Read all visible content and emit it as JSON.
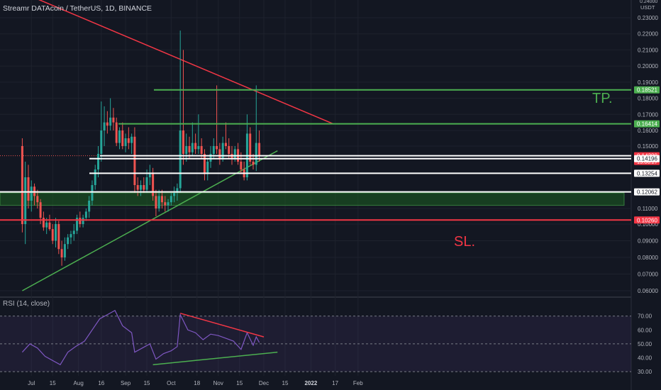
{
  "header": {
    "symbol": "Streamr DATAcoin / TetherUS, 1D, BINANCE"
  },
  "rsi_header": {
    "label": "RSI (14, close)"
  },
  "annotations": {
    "tp": "TP.",
    "sl": "SL."
  },
  "colors": {
    "background": "#131722",
    "up": "#26a69a",
    "down": "#ef5350",
    "green_line": "#4caf50",
    "red_line": "#f23645",
    "white_line": "#ffffff",
    "rsi_line": "#7e57c2",
    "zone_fill": "#1b5e20"
  },
  "chart_data": [
    {
      "type": "candlestick",
      "price_axis": {
        "unit_label": "USDT",
        "top_label": "0.24000",
        "ticks": [
          "0.23000",
          "0.22000",
          "0.21000",
          "0.20000",
          "0.19000",
          "0.18000",
          "0.17000",
          "0.16000",
          "0.15000",
          "0.11000",
          "0.10000",
          "0.09000",
          "0.08000",
          "0.07000",
          "0.06000"
        ],
        "ylim": [
          0.06,
          0.24
        ]
      },
      "time_axis": {
        "ticks": [
          "Jul",
          "15",
          "Aug",
          "16",
          "Sep",
          "15",
          "Oct",
          "18",
          "Nov",
          "15",
          "Dec",
          "15",
          "2022",
          "17",
          "Feb"
        ]
      },
      "levels": [
        {
          "price": "0.18521",
          "color": "green_line",
          "role": "TP"
        },
        {
          "price": "0.16414",
          "color": "green_line"
        },
        {
          "price": "0.14380",
          "color": "white_line",
          "countdown": "13:06:27",
          "role": "current"
        },
        {
          "price": "0.14196",
          "color": "white_line"
        },
        {
          "price": "0.13254",
          "color": "white_line"
        },
        {
          "price": "0.12062",
          "color": "white_line"
        },
        {
          "price": "0.10260",
          "color": "red_line",
          "role": "SL"
        }
      ],
      "zone": {
        "from": 0.112,
        "to": 0.12,
        "color": "zone_fill"
      },
      "trendlines": [
        {
          "color": "red_line",
          "from": [
            "Jul 4 2021",
            0.242
          ],
          "to": [
            "Jan 16 2022",
            0.164
          ]
        },
        {
          "color": "green_line",
          "from": [
            "Jun 25 2021",
            0.06
          ],
          "to": [
            "Dec 10 2021",
            0.147
          ]
        }
      ],
      "candles": [
        {
          "date": "2021-06-25",
          "o": 0.15,
          "h": 0.155,
          "l": 0.095,
          "c": 0.1
        },
        {
          "date": "2021-06-27",
          "o": 0.1,
          "h": 0.14,
          "l": 0.088,
          "c": 0.13
        },
        {
          "date": "2021-06-29",
          "o": 0.13,
          "h": 0.138,
          "l": 0.11,
          "c": 0.115
        },
        {
          "date": "2021-07-01",
          "o": 0.115,
          "h": 0.128,
          "l": 0.108,
          "c": 0.124
        },
        {
          "date": "2021-07-03",
          "o": 0.124,
          "h": 0.126,
          "l": 0.112,
          "c": 0.118
        },
        {
          "date": "2021-07-05",
          "o": 0.118,
          "h": 0.122,
          "l": 0.11,
          "c": 0.114
        },
        {
          "date": "2021-07-07",
          "o": 0.114,
          "h": 0.116,
          "l": 0.1,
          "c": 0.104
        },
        {
          "date": "2021-07-09",
          "o": 0.104,
          "h": 0.108,
          "l": 0.096,
          "c": 0.098
        },
        {
          "date": "2021-07-11",
          "o": 0.098,
          "h": 0.104,
          "l": 0.094,
          "c": 0.101
        },
        {
          "date": "2021-07-13",
          "o": 0.101,
          "h": 0.106,
          "l": 0.096,
          "c": 0.097
        },
        {
          "date": "2021-07-15",
          "o": 0.097,
          "h": 0.1,
          "l": 0.088,
          "c": 0.09
        },
        {
          "date": "2021-07-17",
          "o": 0.09,
          "h": 0.104,
          "l": 0.086,
          "c": 0.1
        },
        {
          "date": "2021-07-19",
          "o": 0.1,
          "h": 0.102,
          "l": 0.082,
          "c": 0.085
        },
        {
          "date": "2021-07-21",
          "o": 0.085,
          "h": 0.09,
          "l": 0.075,
          "c": 0.08
        },
        {
          "date": "2021-07-23",
          "o": 0.08,
          "h": 0.092,
          "l": 0.078,
          "c": 0.088
        },
        {
          "date": "2021-07-25",
          "o": 0.088,
          "h": 0.094,
          "l": 0.085,
          "c": 0.092
        },
        {
          "date": "2021-07-27",
          "o": 0.092,
          "h": 0.096,
          "l": 0.088,
          "c": 0.094
        },
        {
          "date": "2021-07-29",
          "o": 0.094,
          "h": 0.1,
          "l": 0.09,
          "c": 0.096
        },
        {
          "date": "2021-07-31",
          "o": 0.096,
          "h": 0.106,
          "l": 0.094,
          "c": 0.104
        },
        {
          "date": "2021-08-02",
          "o": 0.104,
          "h": 0.108,
          "l": 0.098,
          "c": 0.1
        },
        {
          "date": "2021-08-04",
          "o": 0.1,
          "h": 0.106,
          "l": 0.098,
          "c": 0.104
        },
        {
          "date": "2021-08-06",
          "o": 0.104,
          "h": 0.11,
          "l": 0.102,
          "c": 0.108
        },
        {
          "date": "2021-08-08",
          "o": 0.108,
          "h": 0.118,
          "l": 0.104,
          "c": 0.115
        },
        {
          "date": "2021-08-10",
          "o": 0.115,
          "h": 0.128,
          "l": 0.112,
          "c": 0.125
        },
        {
          "date": "2021-08-12",
          "o": 0.125,
          "h": 0.138,
          "l": 0.122,
          "c": 0.135
        },
        {
          "date": "2021-08-14",
          "o": 0.135,
          "h": 0.15,
          "l": 0.13,
          "c": 0.145
        },
        {
          "date": "2021-08-16",
          "o": 0.145,
          "h": 0.178,
          "l": 0.14,
          "c": 0.16
        },
        {
          "date": "2021-08-18",
          "o": 0.16,
          "h": 0.175,
          "l": 0.15,
          "c": 0.165
        },
        {
          "date": "2021-08-20",
          "o": 0.165,
          "h": 0.172,
          "l": 0.158,
          "c": 0.163
        },
        {
          "date": "2021-08-22",
          "o": 0.163,
          "h": 0.18,
          "l": 0.16,
          "c": 0.168
        },
        {
          "date": "2021-08-24",
          "o": 0.168,
          "h": 0.174,
          "l": 0.16,
          "c": 0.165
        },
        {
          "date": "2021-08-26",
          "o": 0.165,
          "h": 0.168,
          "l": 0.15,
          "c": 0.152
        },
        {
          "date": "2021-08-28",
          "o": 0.152,
          "h": 0.162,
          "l": 0.148,
          "c": 0.16
        },
        {
          "date": "2021-08-30",
          "o": 0.16,
          "h": 0.165,
          "l": 0.148,
          "c": 0.15
        },
        {
          "date": "2021-09-01",
          "o": 0.15,
          "h": 0.158,
          "l": 0.146,
          "c": 0.155
        },
        {
          "date": "2021-09-03",
          "o": 0.155,
          "h": 0.162,
          "l": 0.148,
          "c": 0.152
        },
        {
          "date": "2021-09-05",
          "o": 0.152,
          "h": 0.158,
          "l": 0.145,
          "c": 0.156
        },
        {
          "date": "2021-09-07",
          "o": 0.156,
          "h": 0.162,
          "l": 0.12,
          "c": 0.125
        },
        {
          "date": "2021-09-09",
          "o": 0.125,
          "h": 0.13,
          "l": 0.118,
          "c": 0.122
        },
        {
          "date": "2021-09-11",
          "o": 0.122,
          "h": 0.128,
          "l": 0.118,
          "c": 0.125
        },
        {
          "date": "2021-09-13",
          "o": 0.125,
          "h": 0.13,
          "l": 0.12,
          "c": 0.122
        },
        {
          "date": "2021-09-15",
          "o": 0.122,
          "h": 0.135,
          "l": 0.12,
          "c": 0.13
        },
        {
          "date": "2021-09-17",
          "o": 0.13,
          "h": 0.138,
          "l": 0.125,
          "c": 0.133
        },
        {
          "date": "2021-09-19",
          "o": 0.133,
          "h": 0.136,
          "l": 0.115,
          "c": 0.118
        },
        {
          "date": "2021-09-21",
          "o": 0.118,
          "h": 0.122,
          "l": 0.105,
          "c": 0.11
        },
        {
          "date": "2021-09-23",
          "o": 0.11,
          "h": 0.122,
          "l": 0.108,
          "c": 0.118
        },
        {
          "date": "2021-09-25",
          "o": 0.118,
          "h": 0.122,
          "l": 0.11,
          "c": 0.114
        },
        {
          "date": "2021-09-27",
          "o": 0.114,
          "h": 0.118,
          "l": 0.108,
          "c": 0.112
        },
        {
          "date": "2021-09-29",
          "o": 0.112,
          "h": 0.116,
          "l": 0.108,
          "c": 0.114
        },
        {
          "date": "2021-10-01",
          "o": 0.114,
          "h": 0.12,
          "l": 0.112,
          "c": 0.118
        },
        {
          "date": "2021-10-03",
          "o": 0.118,
          "h": 0.124,
          "l": 0.114,
          "c": 0.12
        },
        {
          "date": "2021-10-05",
          "o": 0.12,
          "h": 0.126,
          "l": 0.115,
          "c": 0.123
        },
        {
          "date": "2021-10-07",
          "o": 0.123,
          "h": 0.222,
          "l": 0.12,
          "c": 0.16
        },
        {
          "date": "2021-10-09",
          "o": 0.16,
          "h": 0.21,
          "l": 0.138,
          "c": 0.145
        },
        {
          "date": "2021-10-11",
          "o": 0.145,
          "h": 0.158,
          "l": 0.14,
          "c": 0.15
        },
        {
          "date": "2021-10-13",
          "o": 0.15,
          "h": 0.156,
          "l": 0.142,
          "c": 0.146
        },
        {
          "date": "2021-10-15",
          "o": 0.146,
          "h": 0.165,
          "l": 0.144,
          "c": 0.152
        },
        {
          "date": "2021-10-17",
          "o": 0.152,
          "h": 0.158,
          "l": 0.145,
          "c": 0.148
        },
        {
          "date": "2021-10-19",
          "o": 0.148,
          "h": 0.17,
          "l": 0.145,
          "c": 0.15
        },
        {
          "date": "2021-10-21",
          "o": 0.15,
          "h": 0.155,
          "l": 0.142,
          "c": 0.145
        },
        {
          "date": "2021-10-23",
          "o": 0.145,
          "h": 0.148,
          "l": 0.128,
          "c": 0.132
        },
        {
          "date": "2021-10-25",
          "o": 0.132,
          "h": 0.142,
          "l": 0.128,
          "c": 0.14
        },
        {
          "date": "2021-10-27",
          "o": 0.14,
          "h": 0.15,
          "l": 0.136,
          "c": 0.145
        },
        {
          "date": "2021-10-29",
          "o": 0.145,
          "h": 0.155,
          "l": 0.142,
          "c": 0.15
        },
        {
          "date": "2021-10-31",
          "o": 0.15,
          "h": 0.188,
          "l": 0.145,
          "c": 0.148
        },
        {
          "date": "2021-11-02",
          "o": 0.148,
          "h": 0.152,
          "l": 0.138,
          "c": 0.142
        },
        {
          "date": "2021-11-04",
          "o": 0.142,
          "h": 0.156,
          "l": 0.14,
          "c": 0.152
        },
        {
          "date": "2021-11-06",
          "o": 0.152,
          "h": 0.165,
          "l": 0.148,
          "c": 0.15
        },
        {
          "date": "2021-11-08",
          "o": 0.15,
          "h": 0.155,
          "l": 0.142,
          "c": 0.145
        },
        {
          "date": "2021-11-10",
          "o": 0.145,
          "h": 0.15,
          "l": 0.138,
          "c": 0.142
        },
        {
          "date": "2021-11-12",
          "o": 0.142,
          "h": 0.15,
          "l": 0.14,
          "c": 0.148
        },
        {
          "date": "2021-11-14",
          "o": 0.148,
          "h": 0.152,
          "l": 0.138,
          "c": 0.14
        },
        {
          "date": "2021-11-16",
          "o": 0.14,
          "h": 0.146,
          "l": 0.132,
          "c": 0.135
        },
        {
          "date": "2021-11-18",
          "o": 0.135,
          "h": 0.14,
          "l": 0.128,
          "c": 0.13
        },
        {
          "date": "2021-11-20",
          "o": 0.13,
          "h": 0.17,
          "l": 0.128,
          "c": 0.158
        },
        {
          "date": "2021-11-22",
          "o": 0.158,
          "h": 0.162,
          "l": 0.138,
          "c": 0.14
        },
        {
          "date": "2021-11-24",
          "o": 0.14,
          "h": 0.145,
          "l": 0.135,
          "c": 0.138
        },
        {
          "date": "2021-11-26",
          "o": 0.138,
          "h": 0.188,
          "l": 0.134,
          "c": 0.152
        },
        {
          "date": "2021-11-28",
          "o": 0.152,
          "h": 0.16,
          "l": 0.14,
          "c": 0.144
        }
      ]
    },
    {
      "type": "line",
      "name": "RSI (14, close)",
      "y_axis": {
        "ticks": [
          "70.00",
          "60.00",
          "50.00",
          "40.00",
          "30.00"
        ],
        "ylim": [
          27,
          77
        ]
      },
      "bands": [
        70,
        50,
        30
      ],
      "trendlines": [
        {
          "color": "red_line",
          "from": [
            "Oct 7 2021",
            72
          ],
          "to": [
            "Dec 1 2021",
            55
          ]
        },
        {
          "color": "green_line",
          "from": [
            "Sep 19 2021",
            35
          ],
          "to": [
            "Dec 10 2021",
            44
          ]
        }
      ],
      "points": [
        {
          "date": "2021-06-25",
          "v": 44
        },
        {
          "date": "2021-06-30",
          "v": 50
        },
        {
          "date": "2021-07-05",
          "v": 47
        },
        {
          "date": "2021-07-10",
          "v": 41
        },
        {
          "date": "2021-07-15",
          "v": 38
        },
        {
          "date": "2021-07-20",
          "v": 35
        },
        {
          "date": "2021-07-25",
          "v": 44
        },
        {
          "date": "2021-07-30",
          "v": 48
        },
        {
          "date": "2021-08-05",
          "v": 52
        },
        {
          "date": "2021-08-10",
          "v": 60
        },
        {
          "date": "2021-08-15",
          "v": 68
        },
        {
          "date": "2021-08-20",
          "v": 71
        },
        {
          "date": "2021-08-25",
          "v": 74
        },
        {
          "date": "2021-08-30",
          "v": 63
        },
        {
          "date": "2021-09-05",
          "v": 58
        },
        {
          "date": "2021-09-07",
          "v": 44
        },
        {
          "date": "2021-09-12",
          "v": 47
        },
        {
          "date": "2021-09-17",
          "v": 50
        },
        {
          "date": "2021-09-21",
          "v": 39
        },
        {
          "date": "2021-09-26",
          "v": 43
        },
        {
          "date": "2021-10-01",
          "v": 45
        },
        {
          "date": "2021-10-05",
          "v": 48
        },
        {
          "date": "2021-10-07",
          "v": 71
        },
        {
          "date": "2021-10-12",
          "v": 60
        },
        {
          "date": "2021-10-17",
          "v": 58
        },
        {
          "date": "2021-10-22",
          "v": 53
        },
        {
          "date": "2021-10-27",
          "v": 57
        },
        {
          "date": "2021-11-01",
          "v": 56
        },
        {
          "date": "2021-11-06",
          "v": 54
        },
        {
          "date": "2021-11-11",
          "v": 52
        },
        {
          "date": "2021-11-16",
          "v": 46
        },
        {
          "date": "2021-11-20",
          "v": 58
        },
        {
          "date": "2021-11-24",
          "v": 49
        },
        {
          "date": "2021-11-26",
          "v": 55
        },
        {
          "date": "2021-11-28",
          "v": 51
        }
      ]
    }
  ]
}
